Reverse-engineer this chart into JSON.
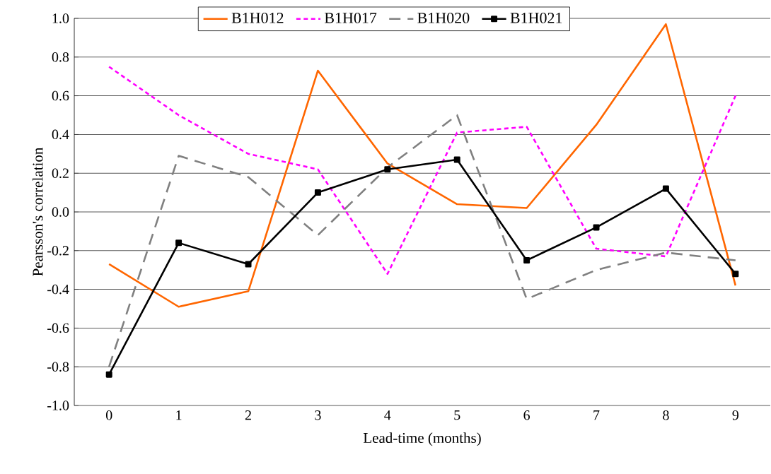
{
  "chart_data": {
    "type": "line",
    "xlabel": "Lead-time (months)",
    "ylabel": "Pearsson's correlation",
    "categories": [
      "0",
      "1",
      "2",
      "3",
      "4",
      "5",
      "6",
      "7",
      "8",
      "9"
    ],
    "series": [
      {
        "name": "B1H012",
        "color": "#ff6600",
        "line_style": "solid",
        "marker": "none",
        "values": [
          -0.27,
          -0.49,
          -0.41,
          0.73,
          0.25,
          0.04,
          0.02,
          0.45,
          0.97,
          -0.38
        ]
      },
      {
        "name": "B1H017",
        "color": "#ff00ff",
        "line_style": "dotted",
        "marker": "none",
        "values": [
          0.75,
          0.5,
          0.3,
          0.22,
          -0.32,
          0.41,
          0.44,
          -0.19,
          -0.23,
          0.6
        ]
      },
      {
        "name": "B1H020",
        "color": "#808080",
        "line_style": "dashed",
        "marker": "none",
        "values": [
          -0.8,
          0.29,
          0.18,
          -0.12,
          0.23,
          0.5,
          -0.45,
          -0.3,
          -0.21,
          -0.25
        ]
      },
      {
        "name": "B1H021",
        "color": "#000000",
        "line_style": "solid",
        "marker": "square",
        "values": [
          -0.84,
          -0.16,
          -0.27,
          0.1,
          0.22,
          0.27,
          -0.25,
          -0.08,
          0.12,
          -0.32
        ]
      }
    ],
    "ylim": [
      -1.0,
      1.0
    ],
    "yticks": [
      {
        "value": -1.0,
        "label": "-1.0"
      },
      {
        "value": -0.8,
        "label": "-0.8"
      },
      {
        "value": -0.6,
        "label": "-0.6"
      },
      {
        "value": -0.4,
        "label": "-0.4"
      },
      {
        "value": -0.2,
        "label": "-0.2"
      },
      {
        "value": 0.0,
        "label": "0.0"
      },
      {
        "value": 0.2,
        "label": "0.2"
      },
      {
        "value": 0.4,
        "label": "0.4"
      },
      {
        "value": 0.6,
        "label": "0.6"
      },
      {
        "value": 0.8,
        "label": "0.8"
      },
      {
        "value": 1.0,
        "label": "1.0"
      }
    ],
    "grid": "y",
    "legend": "top"
  }
}
